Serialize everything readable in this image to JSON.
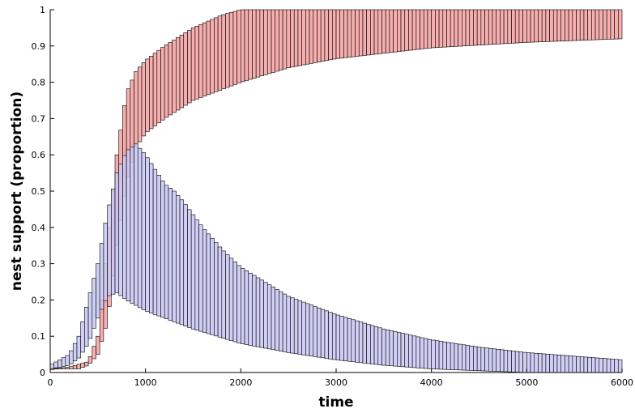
{
  "chart_data": {
    "type": "area",
    "xlabel": "time",
    "ylabel": "nest support (proportion)",
    "xlim": [
      0,
      6000
    ],
    "ylim": [
      0,
      1
    ],
    "xticks": [
      0,
      1000,
      2000,
      3000,
      4000,
      5000,
      6000
    ],
    "yticks": [
      0,
      0.1,
      0.2,
      0.3,
      0.4,
      0.5,
      0.6,
      0.7,
      0.8,
      0.9,
      1
    ],
    "grid": false,
    "bar_step": 40,
    "series": [
      {
        "color": "#f4a0a0",
        "edge_color": "#000000",
        "upper": [
          [
            0,
            0.01
          ],
          [
            200,
            0.015
          ],
          [
            400,
            0.03
          ],
          [
            500,
            0.1
          ],
          [
            600,
            0.35
          ],
          [
            700,
            0.6
          ],
          [
            800,
            0.77
          ],
          [
            900,
            0.83
          ],
          [
            1000,
            0.86
          ],
          [
            1200,
            0.9
          ],
          [
            1500,
            0.95
          ],
          [
            1800,
            0.985
          ],
          [
            2000,
            1.0
          ],
          [
            6000,
            1.0
          ]
        ],
        "lower": [
          [
            0,
            0.01
          ],
          [
            300,
            0.01
          ],
          [
            400,
            0.02
          ],
          [
            500,
            0.05
          ],
          [
            600,
            0.14
          ],
          [
            700,
            0.35
          ],
          [
            800,
            0.52
          ],
          [
            900,
            0.62
          ],
          [
            1000,
            0.66
          ],
          [
            1200,
            0.7
          ],
          [
            1500,
            0.75
          ],
          [
            2000,
            0.8
          ],
          [
            2500,
            0.84
          ],
          [
            3000,
            0.865
          ],
          [
            4000,
            0.895
          ],
          [
            5000,
            0.91
          ],
          [
            6000,
            0.92
          ]
        ]
      },
      {
        "color": "#c8c8f4",
        "edge_color": "#000000",
        "upper": [
          [
            0,
            0.02
          ],
          [
            200,
            0.05
          ],
          [
            300,
            0.1
          ],
          [
            400,
            0.2
          ],
          [
            500,
            0.3
          ],
          [
            600,
            0.44
          ],
          [
            700,
            0.55
          ],
          [
            800,
            0.61
          ],
          [
            900,
            0.63
          ],
          [
            1000,
            0.6
          ],
          [
            1100,
            0.56
          ],
          [
            1200,
            0.52
          ],
          [
            1300,
            0.5
          ],
          [
            1400,
            0.47
          ],
          [
            1600,
            0.4
          ],
          [
            1800,
            0.34
          ],
          [
            2000,
            0.29
          ],
          [
            2500,
            0.21
          ],
          [
            3000,
            0.16
          ],
          [
            3500,
            0.12
          ],
          [
            4000,
            0.09
          ],
          [
            4500,
            0.07
          ],
          [
            5000,
            0.055
          ],
          [
            5500,
            0.045
          ],
          [
            6000,
            0.035
          ]
        ],
        "lower": [
          [
            0,
            0.01
          ],
          [
            200,
            0.02
          ],
          [
            300,
            0.04
          ],
          [
            400,
            0.08
          ],
          [
            500,
            0.15
          ],
          [
            600,
            0.21
          ],
          [
            700,
            0.22
          ],
          [
            800,
            0.2
          ],
          [
            1000,
            0.17
          ],
          [
            1200,
            0.15
          ],
          [
            1500,
            0.12
          ],
          [
            2000,
            0.08
          ],
          [
            2500,
            0.055
          ],
          [
            3000,
            0.035
          ],
          [
            3500,
            0.02
          ],
          [
            4000,
            0.01
          ],
          [
            4500,
            0.005
          ],
          [
            5000,
            0.0
          ],
          [
            6000,
            0.0
          ]
        ]
      }
    ]
  }
}
